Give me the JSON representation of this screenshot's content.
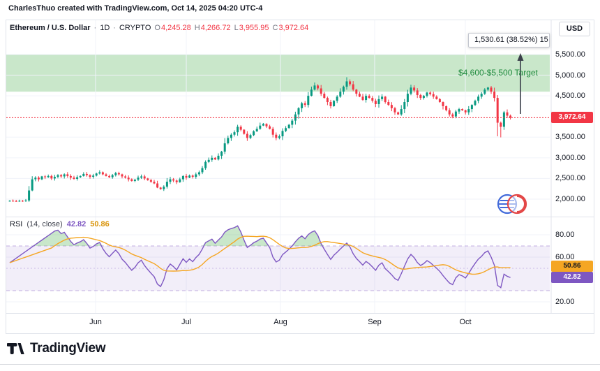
{
  "attribution": "CharlesThuo created with TradingView.com, Oct 14, 2025 04:20 UTC-4",
  "header": {
    "symbol": "Ethereum / U.S. Dollar",
    "sep": "·",
    "interval": "1D",
    "exchange": "CRYPTO",
    "ohlc": {
      "o_label": "O",
      "o": "4,245.28",
      "h_label": "H",
      "h": "4,266.72",
      "l_label": "L",
      "l": "3,955.95",
      "c_label": "C",
      "c": "3,972.64"
    },
    "currency_button": "USD"
  },
  "measure_tooltip": "1,530.61 (38.52%) 15",
  "target_zone": {
    "label": "$4,600-$5,500 Target",
    "from": 4600,
    "to": 5500
  },
  "price_axis": {
    "ticks": [
      {
        "label": "5,500.00",
        "value": 5500
      },
      {
        "label": "5,000.00",
        "value": 5000
      },
      {
        "label": "4,500.00",
        "value": 4500
      },
      {
        "label": "3,500.00",
        "value": 3500
      },
      {
        "label": "3,000.00",
        "value": 3000
      },
      {
        "label": "2,500.00",
        "value": 2500
      },
      {
        "label": "2,000.00",
        "value": 2000
      }
    ],
    "last_price_badge": {
      "label": "3,972.64",
      "value": 3972.64
    }
  },
  "rsi_panel": {
    "title": "RSI",
    "params": "(14, close)",
    "value_badge": {
      "label": "42.82",
      "value": 42.82
    },
    "ma_badge": {
      "label": "50.86",
      "value": 50.86
    },
    "ticks": [
      {
        "label": "80.00",
        "value": 80
      },
      {
        "label": "60.00",
        "value": 60
      },
      {
        "label": "20.00",
        "value": 20
      }
    ],
    "bands": {
      "upper": 70,
      "middle": 50,
      "lower": 30
    }
  },
  "time_axis": {
    "labels": [
      "Jun",
      "Jul",
      "Aug",
      "Sep",
      "Oct"
    ]
  },
  "footer": {
    "brand": "TradingView"
  },
  "colors": {
    "up": "#089981",
    "down": "#f23645",
    "grid": "#f0f3fa",
    "axis_text": "#131722",
    "target_fill": "rgba(76,175,80,0.30)",
    "target_text": "#1f8a3d",
    "rsi_line": "#7e57c2",
    "rsi_ma": "#f5a623",
    "rsi_band_fill": "rgba(126,87,194,0.10)",
    "rsi_band_line": "rgba(126,87,194,0.45)",
    "rsi_mid_line": "rgba(126,87,194,0.35)",
    "rsi_overbought_fill": "rgba(76,175,80,0.30)",
    "rsi_oversold_fill": "rgba(242,54,69,0.25)",
    "arrow": "#3a3f4a",
    "last_price_badge_bg": "#f23645",
    "rsi_value_badge_bg": "#7e57c2",
    "rsi_ma_badge_bg": "#f5a623"
  },
  "chart_data": {
    "type": "candlestick+rsi",
    "symbol": "Ethereum / U.S. Dollar",
    "interval": "1D",
    "exchange": "CRYPTO",
    "price_range_shown": [
      2000,
      5500
    ],
    "x_axis_labels": [
      "Jun",
      "Jul",
      "Aug",
      "Sep",
      "Oct"
    ],
    "ohlc_today": {
      "open": 4245.28,
      "high": 4266.72,
      "low": 3955.95,
      "close": 3972.64
    },
    "last_price": 3972.64,
    "annotations": {
      "target_zone": [
        4600,
        5500
      ],
      "target_label": "$4,600-$5,500 Target",
      "measured_move": "1,530.61 (38.52%)"
    },
    "rsi": {
      "length": 14,
      "source": "close",
      "last": 42.82,
      "ma_last": 50.86
    },
    "first_open": 1955,
    "closes": [
      1960,
      1955,
      1945,
      1960,
      1950,
      1965,
      2210,
      2480,
      2520,
      2480,
      2550,
      2530,
      2560,
      2500,
      2540,
      2580,
      2550,
      2600,
      2560,
      2520,
      2490,
      2530,
      2560,
      2610,
      2580,
      2540,
      2570,
      2620,
      2650,
      2600,
      2560,
      2530,
      2580,
      2630,
      2600,
      2550,
      2520,
      2480,
      2440,
      2470,
      2520,
      2550,
      2500,
      2460,
      2420,
      2380,
      2280,
      2240,
      2300,
      2420,
      2480,
      2450,
      2410,
      2480,
      2560,
      2520,
      2570,
      2540,
      2600,
      2650,
      2750,
      2900,
      2950,
      3000,
      2960,
      3050,
      3150,
      3350,
      3480,
      3560,
      3620,
      3750,
      3680,
      3580,
      3480,
      3550,
      3640,
      3700,
      3780,
      3820,
      3760,
      3700,
      3560,
      3480,
      3520,
      3650,
      3720,
      3800,
      3900,
      4050,
      4200,
      4320,
      4280,
      4500,
      4650,
      4750,
      4680,
      4550,
      4450,
      4350,
      4250,
      4380,
      4480,
      4600,
      4720,
      4850,
      4780,
      4650,
      4550,
      4480,
      4400,
      4500,
      4450,
      4380,
      4300,
      4420,
      4480,
      4350,
      4280,
      4200,
      4100,
      4050,
      4180,
      4350,
      4550,
      4700,
      4630,
      4520,
      4450,
      4500,
      4580,
      4540,
      4480,
      4420,
      4350,
      4250,
      4150,
      4050,
      4000,
      4120,
      4180,
      4150,
      4100,
      4180,
      4280,
      4380,
      4480,
      4550,
      4650,
      4700,
      4600,
      4450,
      3850,
      3750,
      4100,
      4020,
      3972.64
    ],
    "special_highs": {
      "105": 4950
    },
    "special_lows": {
      "152": 3520,
      "153": 3495
    }
  }
}
